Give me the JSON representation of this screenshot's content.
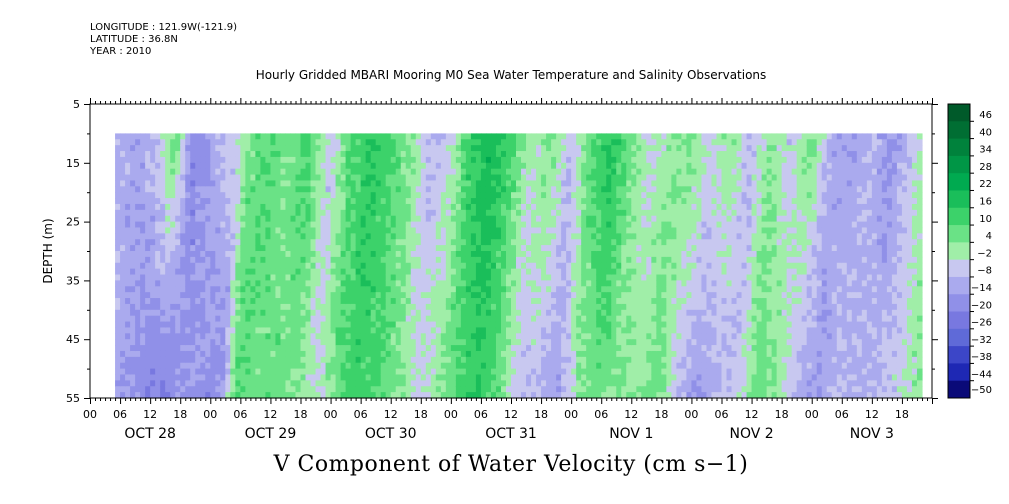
{
  "header": {
    "longitude": "LONGITUDE : 121.9W(-121.9)",
    "latitude": "LATITUDE : 36.8N",
    "year": "YEAR : 2010"
  },
  "chart_data": {
    "type": "heatmap",
    "title": "Hourly Gridded MBARI Mooring M0 Sea Water Temperature and Salinity Observations",
    "xlabel": "V Component of Water Velocity (cm s−1)",
    "ylabel": "DEPTH (m)",
    "ylim": [
      55,
      5
    ],
    "y_ticks": [
      5,
      15,
      25,
      35,
      45,
      55
    ],
    "x_hour_ticks": [
      "00",
      "06",
      "12",
      "18",
      "00",
      "06",
      "12",
      "18",
      "00",
      "06",
      "12",
      "18",
      "00",
      "06",
      "12",
      "18",
      "00",
      "06",
      "12",
      "18",
      "00",
      "06",
      "12",
      "18",
      "00",
      "06",
      "12",
      "18"
    ],
    "x_day_labels": [
      "OCT 28",
      "OCT 29",
      "OCT 30",
      "OCT 31",
      "NOV  1",
      "NOV  2",
      "NOV  3"
    ],
    "x_range_hours": [
      0,
      168
    ],
    "data_start_hour": 5,
    "data_end_hour": 166,
    "data_top_depth": 10,
    "data_bottom_depth": 55,
    "colorbar": {
      "labels": [
        "46",
        "40",
        "34",
        "28",
        "22",
        "16",
        "10",
        "4",
        "−2",
        "−8",
        "−14",
        "−20",
        "−26",
        "−32",
        "−38",
        "−44",
        "−50"
      ],
      "range": [
        -50,
        46
      ],
      "colors": [
        "#005a2a",
        "#006e33",
        "#00823c",
        "#009646",
        "#00aa50",
        "#1abe5a",
        "#3cd26a",
        "#6ae286",
        "#a0eea8",
        "#c8c8f0",
        "#aaaaee",
        "#9090e8",
        "#7878e0",
        "#5f6ad8",
        "#3c46c8",
        "#1e28b4",
        "#0a0a78"
      ]
    },
    "columns": [
      {
        "hour": 5,
        "surface": -10,
        "bottom": -10
      },
      {
        "hour": 8,
        "surface": -12,
        "bottom": -14
      },
      {
        "hour": 12,
        "surface": -6,
        "bottom": -20
      },
      {
        "hour": 15,
        "surface": 8,
        "bottom": -22
      },
      {
        "hour": 19,
        "surface": -20,
        "bottom": -14
      },
      {
        "hour": 23,
        "surface": -10,
        "bottom": -16
      },
      {
        "hour": 27,
        "surface": -4,
        "bottom": -18
      },
      {
        "hour": 30,
        "surface": 6,
        "bottom": 10
      },
      {
        "hour": 34,
        "surface": 10,
        "bottom": 6
      },
      {
        "hour": 38,
        "surface": 4,
        "bottom": 8
      },
      {
        "hour": 42,
        "surface": 12,
        "bottom": 4
      },
      {
        "hour": 46,
        "surface": -6,
        "bottom": -4
      },
      {
        "hour": 50,
        "surface": 10,
        "bottom": 8
      },
      {
        "hour": 54,
        "surface": 16,
        "bottom": 14
      },
      {
        "hour": 58,
        "surface": 12,
        "bottom": 10
      },
      {
        "hour": 62,
        "surface": 4,
        "bottom": 6
      },
      {
        "hour": 66,
        "surface": -8,
        "bottom": -4
      },
      {
        "hour": 70,
        "surface": -4,
        "bottom": 2
      },
      {
        "hour": 74,
        "surface": 14,
        "bottom": 10
      },
      {
        "hour": 78,
        "surface": 20,
        "bottom": 16
      },
      {
        "hour": 82,
        "surface": 12,
        "bottom": 8
      },
      {
        "hour": 86,
        "surface": -2,
        "bottom": -6
      },
      {
        "hour": 90,
        "surface": 6,
        "bottom": -8
      },
      {
        "hour": 94,
        "surface": -6,
        "bottom": -14
      },
      {
        "hour": 98,
        "surface": 8,
        "bottom": 2
      },
      {
        "hour": 102,
        "surface": 18,
        "bottom": 8
      },
      {
        "hour": 106,
        "surface": 6,
        "bottom": 4
      },
      {
        "hour": 110,
        "surface": -4,
        "bottom": 2
      },
      {
        "hour": 114,
        "surface": 2,
        "bottom": 8
      },
      {
        "hour": 118,
        "surface": 6,
        "bottom": -8
      },
      {
        "hour": 122,
        "surface": -4,
        "bottom": -14
      },
      {
        "hour": 126,
        "surface": 4,
        "bottom": -10
      },
      {
        "hour": 130,
        "surface": -8,
        "bottom": -6
      },
      {
        "hour": 134,
        "surface": 4,
        "bottom": 8
      },
      {
        "hour": 138,
        "surface": -6,
        "bottom": 4
      },
      {
        "hour": 142,
        "surface": 6,
        "bottom": -10
      },
      {
        "hour": 146,
        "surface": -10,
        "bottom": -14
      },
      {
        "hour": 150,
        "surface": -14,
        "bottom": -6
      },
      {
        "hour": 154,
        "surface": -8,
        "bottom": -10
      },
      {
        "hour": 158,
        "surface": -16,
        "bottom": -8
      },
      {
        "hour": 162,
        "surface": -6,
        "bottom": -4
      },
      {
        "hour": 166,
        "surface": 6,
        "bottom": 2
      }
    ]
  }
}
